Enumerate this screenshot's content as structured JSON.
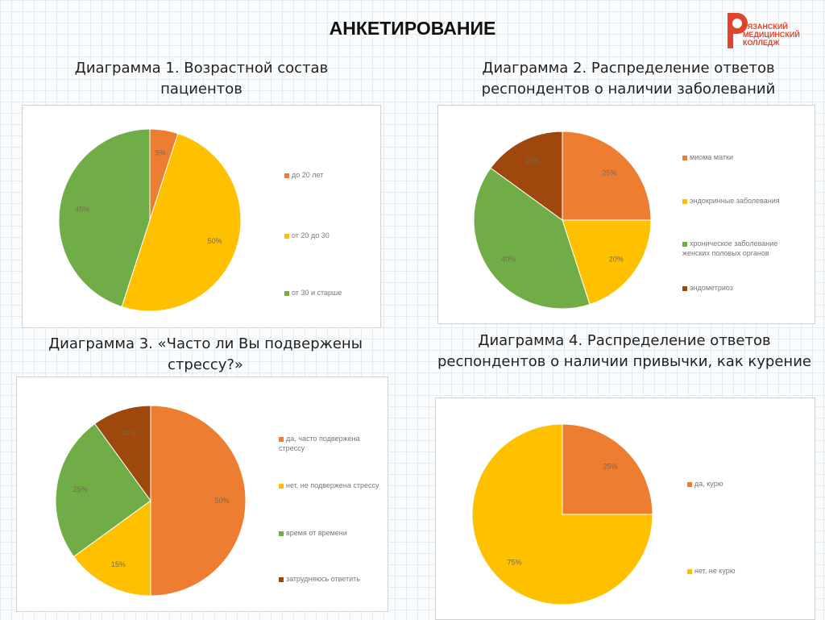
{
  "slide_title": "АНКЕТИРОВАНИЕ",
  "logo": {
    "text": [
      "РЯЗАНСКИЙ",
      "МЕДИЦИНСКИЙ",
      "КОЛЛЕДЖ"
    ],
    "color": "#e0452b"
  },
  "colors": {
    "orange": "#ED7D31",
    "yellow": "#FFC000",
    "green": "#70AD47",
    "brown": "#9E480E"
  },
  "chart_data": [
    {
      "type": "pie",
      "title": "Диаграмма 1. Возрастной состав пациентов",
      "categories": [
        "до 20 лет",
        "от 20 до 30",
        "от 30 и старше"
      ],
      "values": [
        5,
        50,
        45
      ],
      "labels": [
        "5%",
        "50%",
        "45%"
      ],
      "colors": [
        "#ED7D31",
        "#FFC000",
        "#70AD47"
      ],
      "legend": "right"
    },
    {
      "type": "pie",
      "title": "Диаграмма 2. Распределение ответов респондентов о наличии заболеваний",
      "categories": [
        "миома матки",
        "эндокринные заболевания",
        "хроническое заболевание женских половых органов",
        "эндометриоз"
      ],
      "values": [
        25,
        20,
        40,
        15
      ],
      "labels": [
        "25%",
        "20%",
        "40%",
        "15%"
      ],
      "colors": [
        "#ED7D31",
        "#FFC000",
        "#70AD47",
        "#9E480E"
      ],
      "legend": "right"
    },
    {
      "type": "pie",
      "title": "Диаграмма 3. «Часто ли Вы подвержены стрессу?»",
      "categories": [
        "да, часто подвержена стрессу",
        "нет, не подвержена стрессу",
        "время от времени",
        "затрудняюсь ответить"
      ],
      "values": [
        50,
        15,
        25,
        10
      ],
      "labels": [
        "50%",
        "15%",
        "25%",
        "10%"
      ],
      "colors": [
        "#ED7D31",
        "#FFC000",
        "#70AD47",
        "#9E480E"
      ],
      "legend": "right"
    },
    {
      "type": "pie",
      "title": "Диаграмма 4. Распределение ответов респондентов о наличии привычки, как курение",
      "categories": [
        "да, курю",
        "нет, не курю"
      ],
      "values": [
        25,
        75
      ],
      "labels": [
        "25%",
        "75%"
      ],
      "colors": [
        "#ED7D31",
        "#FFC000"
      ],
      "legend": "right"
    }
  ]
}
